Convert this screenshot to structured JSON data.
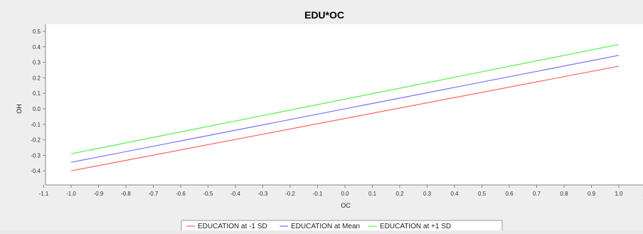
{
  "chart_data": {
    "type": "line",
    "title": "EDU*OC",
    "xlabel": "OC",
    "ylabel": "OH",
    "xlim": [
      -1.1,
      1.1
    ],
    "ylim": [
      -0.53,
      0.53
    ],
    "x_ticks": [
      "-1.1",
      "-1.0",
      "-0.9",
      "-0.8",
      "-0.7",
      "-0.6",
      "-0.5",
      "-0.4",
      "-0.3",
      "-0.2",
      "-0.1",
      "0.0",
      "0.1",
      "0.2",
      "0.3",
      "0.4",
      "0.5",
      "0.6",
      "0.7",
      "0.8",
      "0.9",
      "1.0",
      "1.1"
    ],
    "y_ticks": [
      "0.5",
      "0.4",
      "0.3",
      "0.2",
      "0.1",
      "0.0",
      "-0.1",
      "-0.2",
      "-0.3",
      "-0.4"
    ],
    "grid": false,
    "legend_position": "bottom",
    "series": [
      {
        "name": "EDUCATION at -1 SD",
        "color": "#ff6060",
        "x": [
          -1.0,
          1.0
        ],
        "y": [
          -0.4,
          0.275
        ]
      },
      {
        "name": "EDUCATION at Mean",
        "color": "#7070ff",
        "x": [
          -1.0,
          1.0
        ],
        "y": [
          -0.345,
          0.345
        ]
      },
      {
        "name": "EDUCATION at +1 SD",
        "color": "#50f050",
        "x": [
          -1.0,
          1.0
        ],
        "y": [
          -0.29,
          0.415
        ]
      }
    ]
  }
}
